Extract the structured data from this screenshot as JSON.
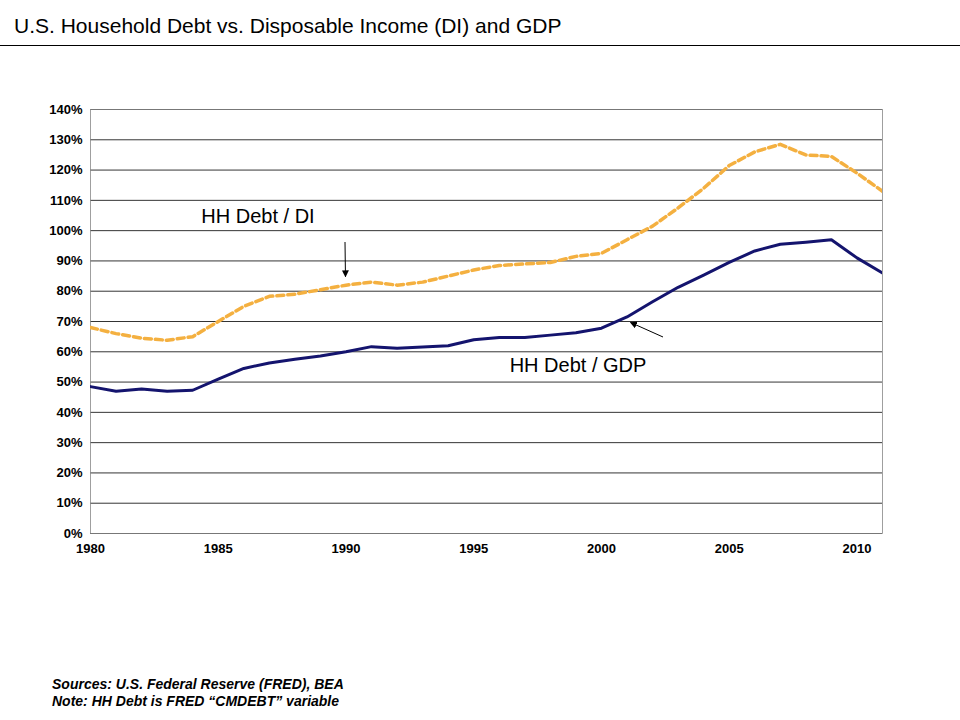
{
  "chart_data": {
    "type": "line",
    "title": "U.S. Household Debt vs. Disposable Income (DI) and GDP",
    "source": "Sources:  U.S. Federal Reserve (FRED), BEA",
    "note": "Note: HH Debt is FRED “CMDEBT” variable",
    "x": [
      1980,
      1981,
      1982,
      1983,
      1984,
      1985,
      1986,
      1987,
      1988,
      1989,
      1990,
      1991,
      1992,
      1993,
      1994,
      1995,
      1996,
      1997,
      1998,
      1999,
      2000,
      2001,
      2002,
      2003,
      2004,
      2005,
      2006,
      2007,
      2008,
      2009,
      2010,
      2011
    ],
    "series": [
      {
        "name": "HH Debt / DI",
        "color": "#f4b040",
        "line_style": "dashed",
        "values": [
          68,
          66,
          64.5,
          63.8,
          65,
          70,
          75,
          78.3,
          79,
          80.5,
          82,
          83,
          82,
          83,
          85,
          87,
          88.5,
          89,
          89.5,
          91.5,
          92.5,
          97,
          101.5,
          107.5,
          114,
          121.5,
          126,
          128.5,
          125,
          124.5,
          119,
          113
        ]
      },
      {
        "name": "HH Debt / GDP",
        "color": "#14146e",
        "line_style": "solid",
        "values": [
          48.5,
          47,
          47.7,
          47,
          47.3,
          51,
          54.5,
          56.3,
          57.5,
          58.6,
          60,
          61.7,
          61.2,
          61.6,
          62,
          64,
          64.7,
          64.7,
          65.5,
          66.3,
          67.8,
          71.5,
          76.5,
          81.3,
          85.3,
          89.5,
          93.3,
          95.5,
          96.2,
          97,
          91,
          86
        ]
      }
    ],
    "xlim": [
      1980,
      2011
    ],
    "xticks": [
      1980,
      1985,
      1990,
      1995,
      2000,
      2005,
      2010
    ],
    "ylim": [
      0,
      140
    ],
    "yticks": [
      {
        "value": 0,
        "label": "0%"
      },
      {
        "value": 10,
        "label": "10%"
      },
      {
        "value": 20,
        "label": "20%"
      },
      {
        "value": 30,
        "label": "30%"
      },
      {
        "value": 40,
        "label": "40%"
      },
      {
        "value": 50,
        "label": "50%"
      },
      {
        "value": 60,
        "label": "60%"
      },
      {
        "value": 70,
        "label": "70%"
      },
      {
        "value": 80,
        "label": "80%"
      },
      {
        "value": 90,
        "label": "90%"
      },
      {
        "value": 100,
        "label": "100%"
      },
      {
        "value": 110,
        "label": "110%"
      },
      {
        "value": 120,
        "label": "120%"
      },
      {
        "value": 130,
        "label": "130%"
      },
      {
        "value": 140,
        "label": "140%"
      }
    ],
    "grid": true
  }
}
